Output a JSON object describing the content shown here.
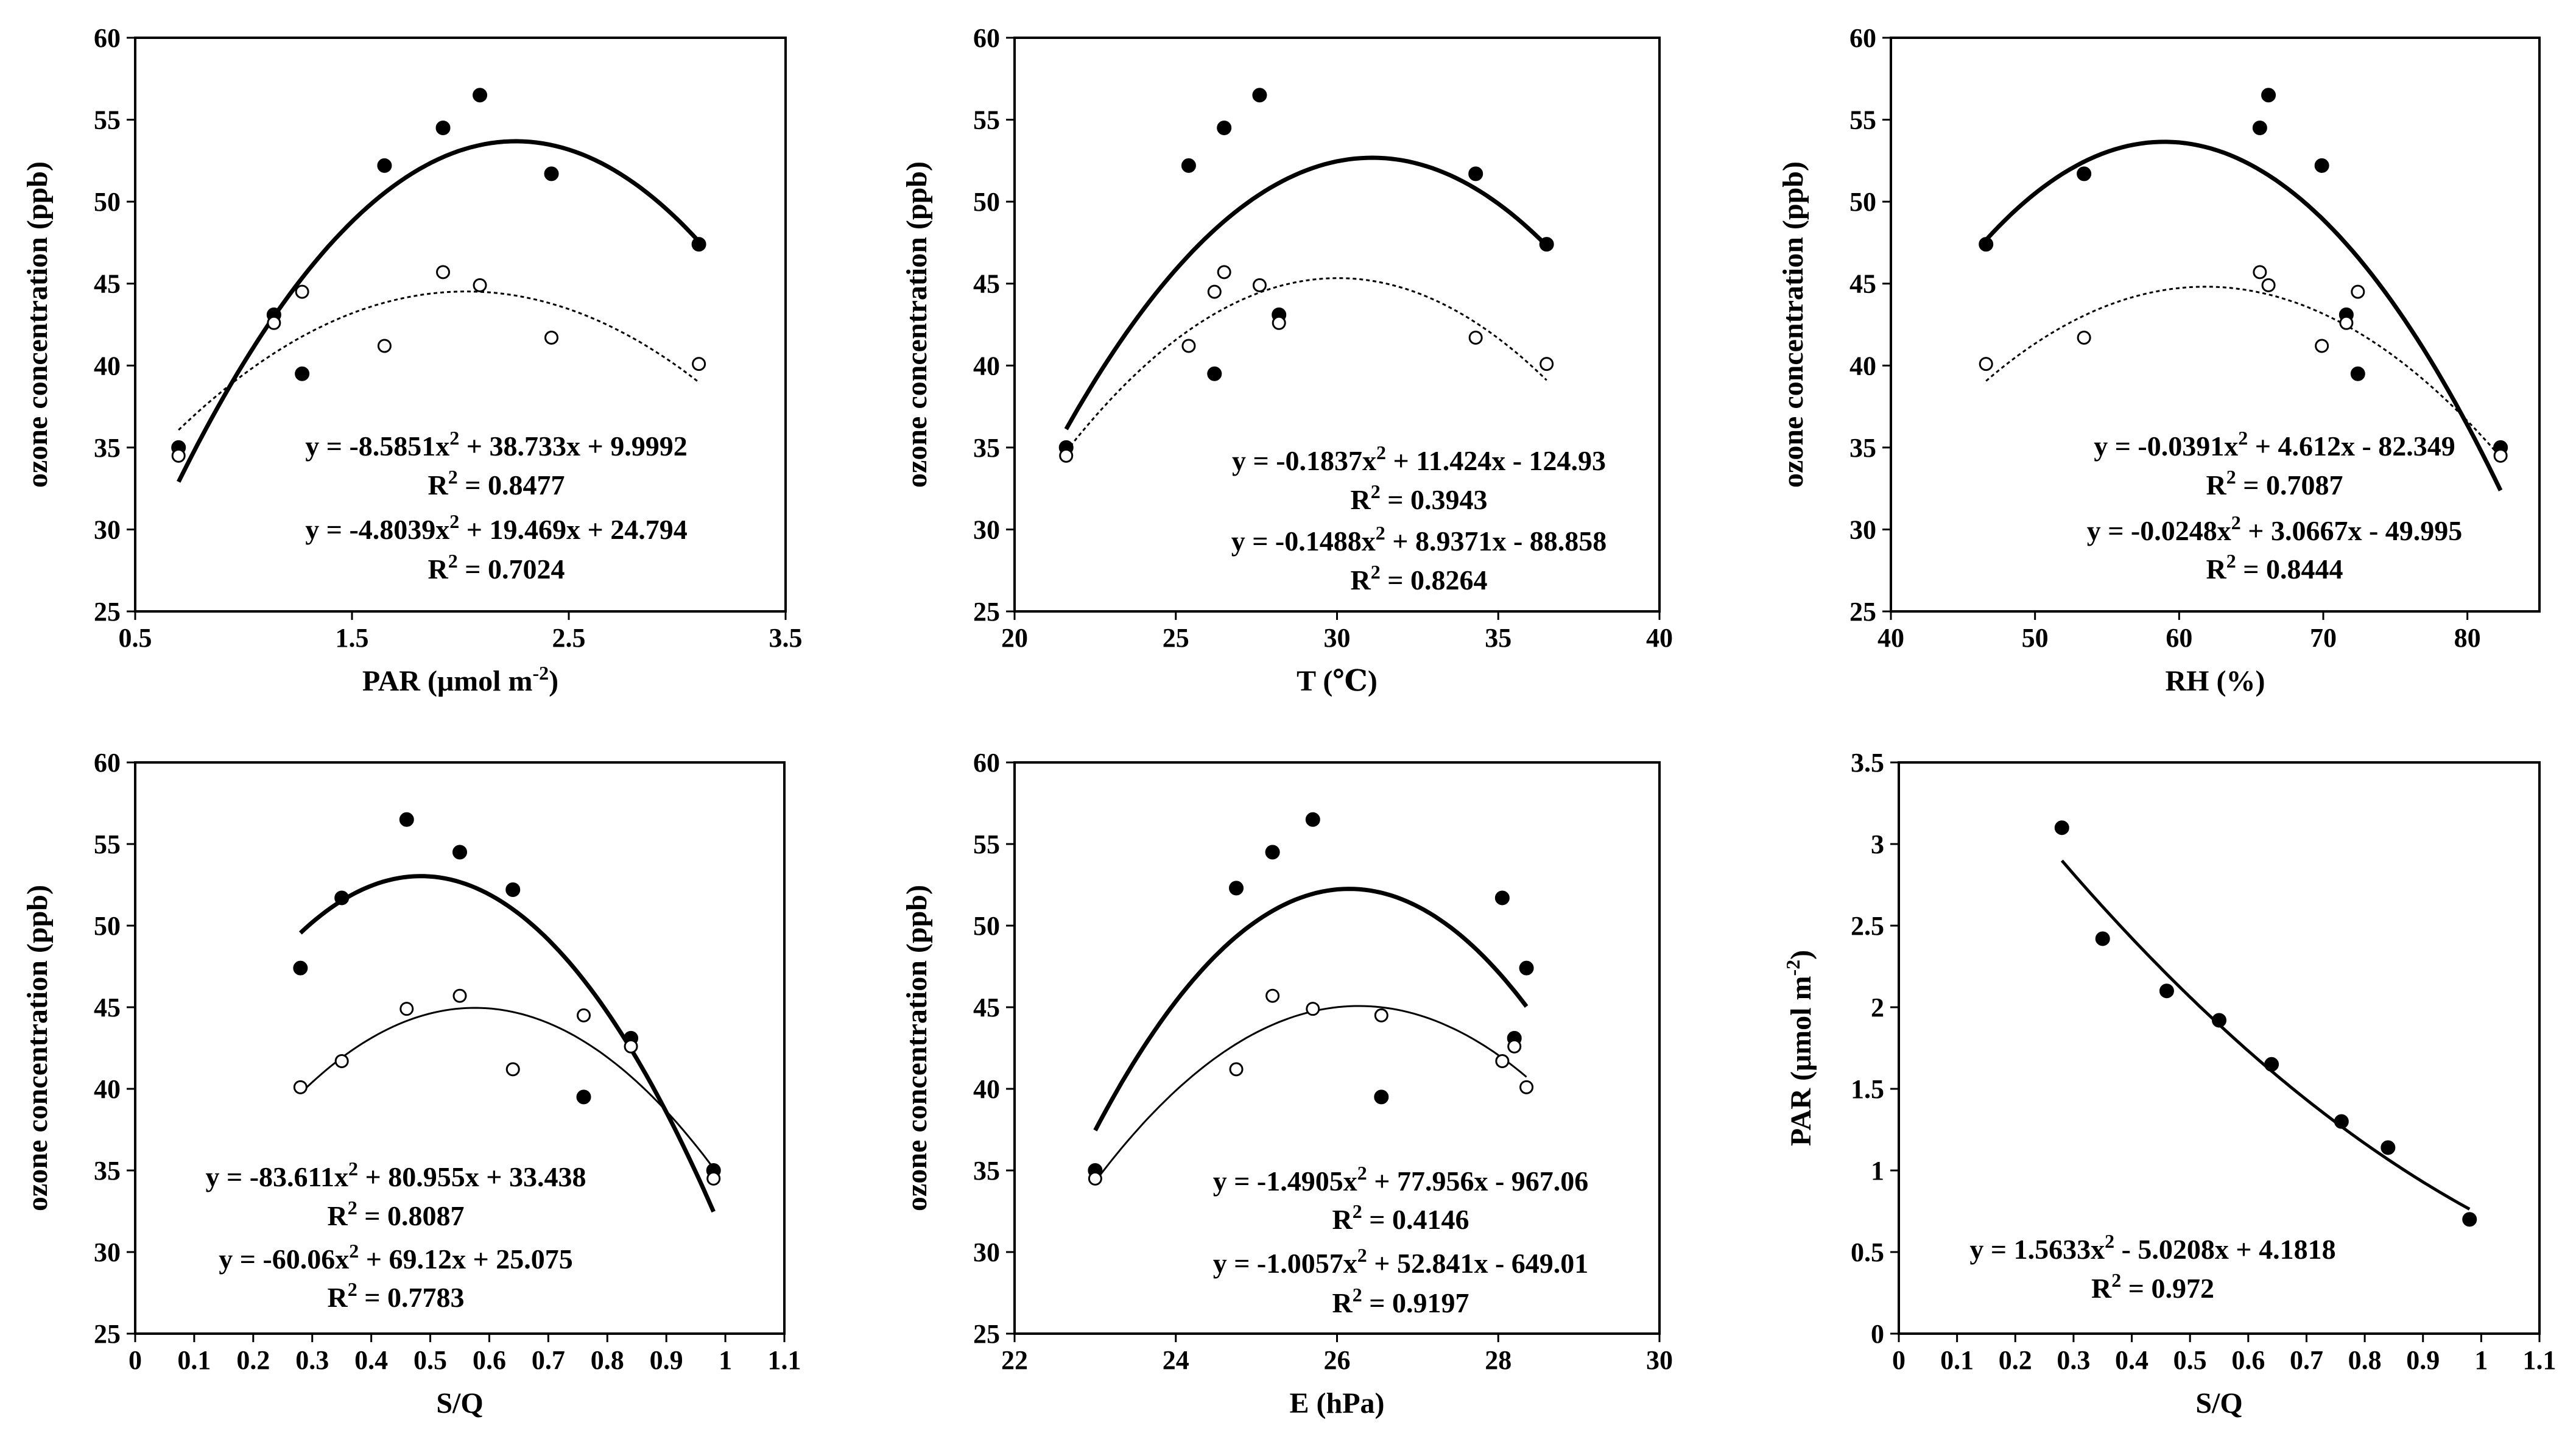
{
  "figure": {
    "panel_count": 6
  },
  "chart_data": [
    {
      "type": "scatter",
      "xlabel": "PAR (μmol m-2)",
      "ylabel": "ozone concentration (ppb)",
      "xlim": [
        0.5,
        3.5
      ],
      "ylim": [
        25,
        60
      ],
      "xticks": [
        0.5,
        1.5,
        2.5,
        3.5
      ],
      "xtick_labels": [
        "0.5",
        "1.5",
        "2.5",
        "3.5"
      ],
      "yticks": [
        25,
        30,
        35,
        40,
        45,
        50,
        55,
        60
      ],
      "ytick_labels": [
        "25",
        "30",
        "35",
        "40",
        "45",
        "50",
        "55",
        "60"
      ],
      "series": [
        {
          "name": "filled",
          "marker": "filled",
          "x": [
            0.7,
            1.14,
            1.27,
            1.65,
            1.92,
            2.09,
            2.42,
            3.1
          ],
          "y": [
            35.0,
            43.1,
            39.5,
            52.2,
            54.5,
            56.5,
            51.7,
            47.4
          ],
          "fit": {
            "a": -8.5851,
            "b": 38.733,
            "c": 9.9992,
            "style": "solid-bold",
            "equation": "y = -8.5851x² + 38.733x + 9.9992",
            "r2": "R² = 0.8477"
          }
        },
        {
          "name": "open",
          "marker": "open",
          "x": [
            0.7,
            1.14,
            1.27,
            1.65,
            1.92,
            2.09,
            2.42,
            3.1
          ],
          "y": [
            34.5,
            42.6,
            44.5,
            41.2,
            45.7,
            44.9,
            41.7,
            40.1
          ],
          "fit": {
            "a": -4.8039,
            "b": 19.469,
            "c": 24.794,
            "style": "dashed",
            "equation": "y = -4.8039x² + 19.469x + 24.794",
            "r2": "R² = 0.7024"
          }
        }
      ]
    },
    {
      "type": "scatter",
      "xlabel": "T (℃)",
      "ylabel": "ozone concentration (ppb)",
      "xlim": [
        20,
        40
      ],
      "ylim": [
        25,
        60
      ],
      "xticks": [
        20,
        25,
        30,
        35,
        40
      ],
      "xtick_labels": [
        "20",
        "25",
        "30",
        "35",
        "40"
      ],
      "yticks": [
        25,
        30,
        35,
        40,
        45,
        50,
        55,
        60
      ],
      "ytick_labels": [
        "25",
        "30",
        "35",
        "40",
        "45",
        "50",
        "55",
        "60"
      ],
      "series": [
        {
          "name": "filled",
          "marker": "filled",
          "x": [
            21.6,
            25.4,
            26.2,
            26.5,
            27.6,
            28.2,
            34.3,
            36.5
          ],
          "y": [
            35.0,
            52.2,
            39.5,
            54.5,
            56.5,
            43.1,
            51.7,
            47.4
          ],
          "fit": {
            "a": -0.1837,
            "b": 11.424,
            "c": -124.93,
            "style": "solid-bold",
            "equation": "y = -0.1837x² + 11.424x - 124.93",
            "r2": "R² = 0.3943"
          }
        },
        {
          "name": "open",
          "marker": "open",
          "x": [
            21.6,
            25.4,
            26.2,
            26.5,
            27.6,
            28.2,
            34.3,
            36.5
          ],
          "y": [
            34.5,
            41.2,
            44.5,
            45.7,
            44.9,
            42.6,
            41.7,
            40.1
          ],
          "fit": {
            "a": -0.1488,
            "b": 8.9371,
            "c": -88.858,
            "style": "dashed",
            "equation": "y = -0.1488x² + 8.9371x - 88.858",
            "r2": "R² = 0.8264"
          }
        }
      ]
    },
    {
      "type": "scatter",
      "xlabel": "RH (%)",
      "ylabel": "ozone concentration (ppb)",
      "xlim": [
        40,
        85
      ],
      "ylim": [
        25,
        60
      ],
      "xticks": [
        40,
        50,
        60,
        70,
        80
      ],
      "xtick_labels": [
        "40",
        "50",
        "60",
        "70",
        "80"
      ],
      "yticks": [
        25,
        30,
        35,
        40,
        45,
        50,
        55,
        60
      ],
      "ytick_labels": [
        "25",
        "30",
        "35",
        "40",
        "45",
        "50",
        "55",
        "60"
      ],
      "series": [
        {
          "name": "filled",
          "marker": "filled",
          "x": [
            46.6,
            53.4,
            65.6,
            66.2,
            69.9,
            71.6,
            72.4,
            82.3
          ],
          "y": [
            47.4,
            51.7,
            54.5,
            56.5,
            52.2,
            43.1,
            39.5,
            35.0
          ],
          "fit": {
            "a": -0.0391,
            "b": 4.612,
            "c": -82.349,
            "style": "solid-bold",
            "equation": "y = -0.0391x² + 4.612x - 82.349",
            "r2": "R² = 0.7087"
          }
        },
        {
          "name": "open",
          "marker": "open",
          "x": [
            46.6,
            53.4,
            65.6,
            66.2,
            69.9,
            71.6,
            72.4,
            82.3
          ],
          "y": [
            40.1,
            41.7,
            45.7,
            44.9,
            41.2,
            42.6,
            44.5,
            34.5
          ],
          "fit": {
            "a": -0.0248,
            "b": 3.0667,
            "c": -49.995,
            "style": "dashed",
            "equation": "y = -0.0248x² + 3.0667x - 49.995",
            "r2": "R² = 0.8444"
          }
        }
      ]
    },
    {
      "type": "scatter",
      "xlabel": "S/Q",
      "ylabel": "ozone concentration (ppb)",
      "xlim": [
        0,
        1.1
      ],
      "ylim": [
        25,
        60
      ],
      "xticks": [
        0,
        0.1,
        0.2,
        0.3,
        0.4,
        0.5,
        0.6,
        0.7,
        0.8,
        0.9,
        1,
        1.1
      ],
      "xtick_labels": [
        "0",
        "0.1",
        "0.2",
        "0.3",
        "0.4",
        "0.5",
        "0.6",
        "0.7",
        "0.8",
        "0.9",
        "1",
        "1.1"
      ],
      "yticks": [
        25,
        30,
        35,
        40,
        45,
        50,
        55,
        60
      ],
      "ytick_labels": [
        "25",
        "30",
        "35",
        "40",
        "45",
        "50",
        "55",
        "60"
      ],
      "series": [
        {
          "name": "filled",
          "marker": "filled",
          "x": [
            0.28,
            0.35,
            0.46,
            0.55,
            0.64,
            0.76,
            0.84,
            0.98
          ],
          "y": [
            47.4,
            51.7,
            56.5,
            54.5,
            52.2,
            39.5,
            43.1,
            35.0
          ],
          "fit": {
            "a": -83.611,
            "b": 80.955,
            "c": 33.438,
            "style": "solid-bold",
            "equation": "y = -83.611x² + 80.955x + 33.438",
            "r2": "R² = 0.8087"
          }
        },
        {
          "name": "open",
          "marker": "open",
          "x": [
            0.28,
            0.35,
            0.46,
            0.55,
            0.64,
            0.76,
            0.84,
            0.98
          ],
          "y": [
            40.1,
            41.7,
            44.9,
            45.7,
            41.2,
            44.5,
            42.6,
            34.5
          ],
          "fit": {
            "a": -60.06,
            "b": 69.12,
            "c": 25.075,
            "style": "solid-thin",
            "equation": "y = -60.06x² + 69.12x + 25.075",
            "r2": "R² = 0.7783"
          }
        }
      ]
    },
    {
      "type": "scatter",
      "xlabel": "E (hPa)",
      "ylabel": "ozone concentration (ppb)",
      "xlim": [
        22,
        30
      ],
      "ylim": [
        25,
        60
      ],
      "xticks": [
        22,
        24,
        26,
        28,
        30
      ],
      "xtick_labels": [
        "22",
        "24",
        "26",
        "28",
        "30"
      ],
      "yticks": [
        25,
        30,
        35,
        40,
        45,
        50,
        55,
        60
      ],
      "ytick_labels": [
        "25",
        "30",
        "35",
        "40",
        "45",
        "50",
        "55",
        "60"
      ],
      "series": [
        {
          "name": "filled",
          "marker": "filled",
          "x": [
            23.0,
            24.75,
            25.2,
            25.7,
            26.55,
            28.05,
            28.2,
            28.35
          ],
          "y": [
            35.0,
            52.3,
            54.5,
            56.5,
            39.5,
            51.7,
            43.1,
            47.4
          ],
          "fit": {
            "a": -1.4905,
            "b": 77.956,
            "c": -967.06,
            "style": "solid-bold",
            "equation": "y = -1.4905x² + 77.956x - 967.06",
            "r2": "R² = 0.4146"
          }
        },
        {
          "name": "open",
          "marker": "open",
          "x": [
            23.0,
            24.75,
            25.2,
            25.7,
            26.55,
            28.05,
            28.2,
            28.35
          ],
          "y": [
            34.5,
            41.2,
            45.7,
            44.9,
            44.5,
            41.7,
            42.6,
            40.1
          ],
          "fit": {
            "a": -1.0057,
            "b": 52.841,
            "c": -649.01,
            "style": "solid-thin",
            "equation": "y = -1.0057x² + 52.841x - 649.01",
            "r2": "R² = 0.9197"
          }
        }
      ]
    },
    {
      "type": "scatter",
      "xlabel": "S/Q",
      "ylabel": "PAR (μmol m-2)",
      "xlim": [
        0,
        1.1
      ],
      "ylim": [
        0,
        3.5
      ],
      "xticks": [
        0,
        0.1,
        0.2,
        0.3,
        0.4,
        0.5,
        0.6,
        0.7,
        0.8,
        0.9,
        1,
        1.1
      ],
      "xtick_labels": [
        "0",
        "0.1",
        "0.2",
        "0.3",
        "0.4",
        "0.5",
        "0.6",
        "0.7",
        "0.8",
        "0.9",
        "1",
        "1.1"
      ],
      "yticks": [
        0,
        0.5,
        1,
        1.5,
        2,
        2.5,
        3,
        3.5
      ],
      "ytick_labels": [
        "0",
        "0.5",
        "1",
        "1.5",
        "2",
        "2.5",
        "3",
        "3.5"
      ],
      "series": [
        {
          "name": "filled",
          "marker": "filled",
          "x": [
            0.28,
            0.35,
            0.46,
            0.55,
            0.64,
            0.76,
            0.84,
            0.98
          ],
          "y": [
            3.1,
            2.42,
            2.1,
            1.92,
            1.65,
            1.3,
            1.14,
            0.7
          ],
          "fit": {
            "a": 1.5633,
            "b": -5.0208,
            "c": 4.1818,
            "style": "solid-medium",
            "equation": "y = 1.5633x² - 5.0208x + 4.1818",
            "r2": "R² = 0.972"
          }
        }
      ]
    }
  ]
}
